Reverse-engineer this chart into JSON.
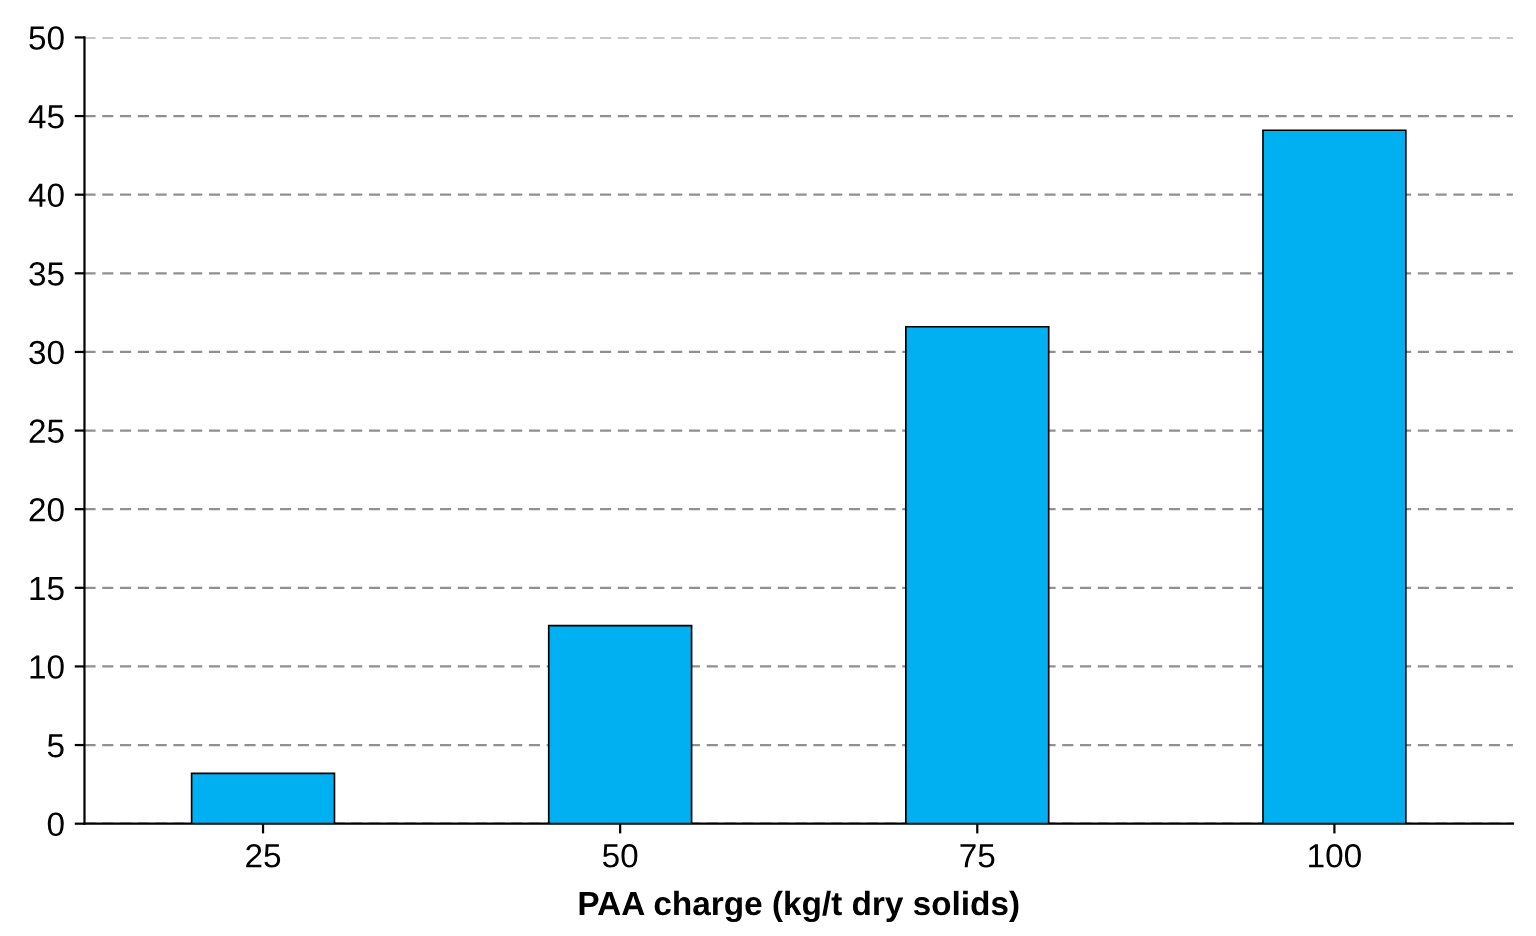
{
  "chart_data": {
    "type": "bar",
    "xlabel": "PAA charge (kg/t dry solids)",
    "categories": [
      "25",
      "50",
      "75",
      "100"
    ],
    "values": [
      3.2,
      12.6,
      31.6,
      44.1
    ],
    "color": "#00b0f0",
    "ylim": [
      0,
      50
    ],
    "yticks": [
      0,
      5,
      10,
      15,
      20,
      25,
      30,
      35,
      40,
      45,
      50
    ],
    "grid": "y"
  }
}
